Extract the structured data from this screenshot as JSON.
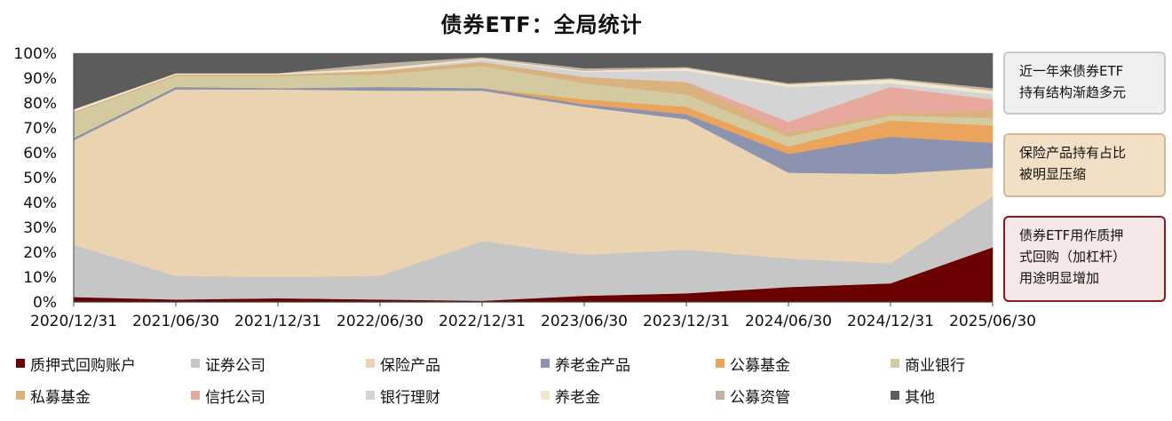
{
  "chart_data": {
    "type": "area",
    "stacked": "percent",
    "title": "债券ETF：全局统计",
    "xlabel": "",
    "ylabel": "",
    "ylim": [
      0,
      100
    ],
    "yticks": [
      "0%",
      "10%",
      "20%",
      "30%",
      "40%",
      "50%",
      "60%",
      "70%",
      "80%",
      "90%",
      "100%"
    ],
    "categories": [
      "2020/12/31",
      "2021/06/30",
      "2021/12/31",
      "2022/06/30",
      "2022/12/31",
      "2023/06/30",
      "2023/12/31",
      "2024/06/30",
      "2024/12/31",
      "2025/06/30"
    ],
    "series": [
      {
        "name": "质押式回购账户",
        "color": "#6b0000",
        "values": [
          2,
          1,
          1.5,
          1,
          0.5,
          2.5,
          3.5,
          6,
          7.5,
          22
        ]
      },
      {
        "name": "证券公司",
        "color": "#c6c6c6",
        "values": [
          21,
          9.5,
          8.5,
          9.5,
          24,
          16.5,
          17.5,
          11.5,
          8,
          20.5
        ]
      },
      {
        "name": "保险产品",
        "color": "#e9d3b1",
        "values": [
          42,
          75,
          75.5,
          74.5,
          60.5,
          59.5,
          52.5,
          34.5,
          36,
          11.5
        ]
      },
      {
        "name": "养老金产品",
        "color": "#8c93b0",
        "values": [
          1,
          1,
          0.5,
          1.5,
          1,
          1,
          2,
          7.5,
          15,
          10
        ]
      },
      {
        "name": "公募基金",
        "color": "#eba45c",
        "values": [
          0,
          0,
          0,
          0,
          0,
          2,
          3,
          3,
          6.5,
          7
        ]
      },
      {
        "name": "商业银行",
        "color": "#d3caa0",
        "values": [
          10,
          4.5,
          5,
          5,
          9,
          6.5,
          5,
          4,
          2,
          3
        ]
      },
      {
        "name": "私募基金",
        "color": "#dab27f",
        "values": [
          0.5,
          0.5,
          0.5,
          1.5,
          1.5,
          2.5,
          5,
          1.5,
          1,
          3
        ]
      },
      {
        "name": "信托公司",
        "color": "#e9a89e",
        "values": [
          0,
          0,
          0,
          0,
          0,
          0,
          0,
          4.5,
          10.5,
          4.5
        ]
      },
      {
        "name": "银行理财",
        "color": "#d4d4d4",
        "values": [
          0,
          0,
          0,
          0,
          1,
          2,
          4.5,
          14,
          1.5,
          2
        ]
      },
      {
        "name": "养老金",
        "color": "#f3e6cf",
        "values": [
          1,
          0.5,
          0.5,
          1,
          0.5,
          0.5,
          1,
          1,
          1.5,
          1.5
        ]
      },
      {
        "name": "公募资管",
        "color": "#bfb3a2",
        "values": [
          0,
          0,
          0,
          2,
          0.5,
          1,
          0.5,
          0.5,
          0.5,
          1
        ]
      },
      {
        "name": "其他",
        "color": "#5c5c5c",
        "values": [
          22.5,
          8,
          8,
          4,
          1.5,
          6,
          5.5,
          12,
          10,
          14
        ]
      }
    ],
    "annotations": [
      "近一年来债券ETF持有结构渐趋多元",
      "保险产品持有占比被明显压缩",
      "债券ETF用作质押式回购（加杠杆）用途明显增加"
    ]
  },
  "callouts": [
    {
      "line1": "近一年来债券ETF",
      "line2": "持有结构渐趋多元"
    },
    {
      "line1": "保险产品持有占比",
      "line2": "被明显压缩"
    },
    {
      "line1": "债券ETF用作质押",
      "line2": "式回购（加杠杆）",
      "line3": "用途明显增加"
    }
  ]
}
